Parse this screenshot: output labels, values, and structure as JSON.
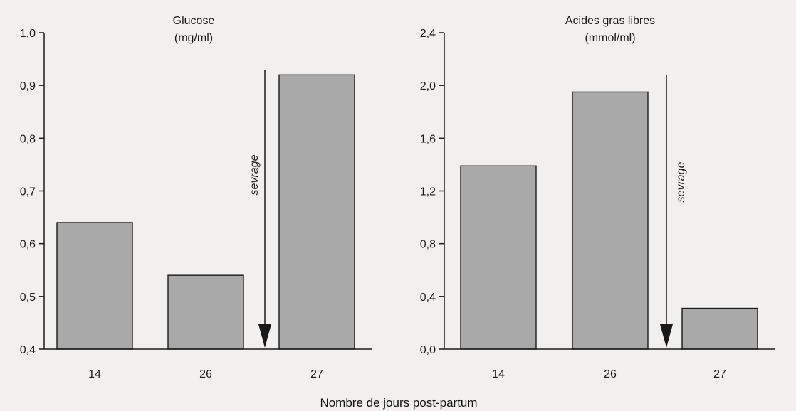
{
  "figure": {
    "xlabel": "Nombre de jours post-partum",
    "background": "#f1f0ee",
    "bar_color": "#a9a9a9"
  },
  "chart_data": [
    {
      "type": "bar",
      "title_line1": "Glucose",
      "title_line2": "(mg/ml)",
      "categories": [
        "14",
        "26",
        "27"
      ],
      "values": [
        0.64,
        0.54,
        0.92
      ],
      "ylim": [
        0.4,
        1.0
      ],
      "yticks": [
        "0,4",
        "0,5",
        "0,6",
        "0,7",
        "0,8",
        "0,9",
        "1,0"
      ],
      "ytick_values": [
        0.4,
        0.5,
        0.6,
        0.7,
        0.8,
        0.9,
        1.0
      ],
      "grid": false,
      "annotation": {
        "text": "sevrage",
        "between_categories": [
          "26",
          "27"
        ],
        "arrow": "down"
      }
    },
    {
      "type": "bar",
      "title_line1": "Acides gras libres",
      "title_line2": "(mmol/ml)",
      "categories": [
        "14",
        "26",
        "27"
      ],
      "values": [
        1.39,
        1.95,
        0.31
      ],
      "ylim": [
        0.0,
        2.4
      ],
      "yticks": [
        "0,0",
        "0,4",
        "0,8",
        "1,2",
        "1,6",
        "2,0",
        "2,4"
      ],
      "ytick_values": [
        0.0,
        0.4,
        0.8,
        1.2,
        1.6,
        2.0,
        2.4
      ],
      "grid": false,
      "annotation": {
        "text": "sevrage",
        "between_categories": [
          "26",
          "27"
        ],
        "arrow": "down"
      }
    }
  ]
}
